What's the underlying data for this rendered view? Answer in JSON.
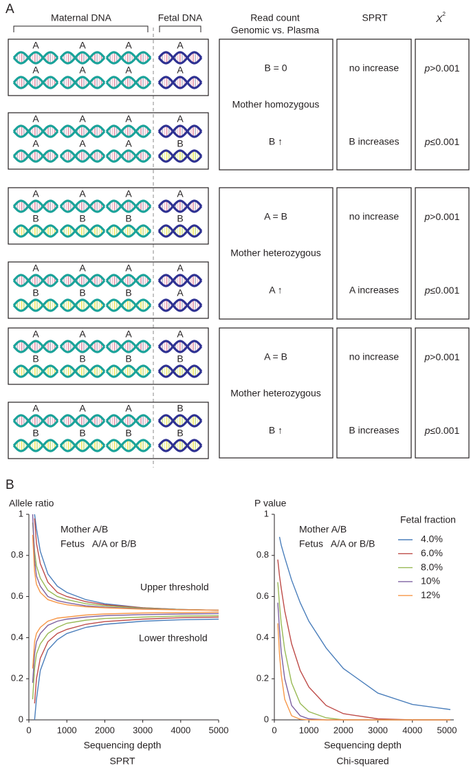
{
  "panel_a": {
    "label": "A",
    "headers": {
      "maternal": "Maternal DNA",
      "fetal": "Fetal DNA",
      "read_count": [
        "Read count",
        "Genomic vs. Plasma"
      ],
      "sprt": "SPRT",
      "chi": {
        "symbol": "X",
        "sup": "2"
      }
    },
    "boxes": [
      {
        "maternal": [
          "A",
          "A"
        ],
        "fetal": [
          "A",
          "A"
        ]
      },
      {
        "maternal": [
          "A",
          "A"
        ],
        "fetal": [
          "A",
          "B"
        ]
      },
      {
        "maternal": [
          "A",
          "B"
        ],
        "fetal": [
          "A",
          "B"
        ]
      },
      {
        "maternal": [
          "A",
          "B"
        ],
        "fetal": [
          "A",
          "A"
        ]
      },
      {
        "maternal": [
          "A",
          "B"
        ],
        "fetal": [
          "A",
          "B"
        ]
      },
      {
        "maternal": [
          "A",
          "B"
        ],
        "fetal": [
          "B",
          "B"
        ]
      }
    ],
    "groups": [
      {
        "read_count": [
          "B = 0",
          "Mother homozygous",
          "B ↑"
        ],
        "sprt": [
          "no increase",
          "B increases"
        ],
        "chi": [
          {
            "italic": "p",
            "text": ">0.001"
          },
          {
            "italic": "p",
            "text": "≤0.001"
          }
        ]
      },
      {
        "read_count": [
          "A = B",
          "Mother heterozygous",
          "A ↑"
        ],
        "sprt": [
          "no increase",
          "A increases"
        ],
        "chi": [
          {
            "italic": "p",
            "text": ">0.001"
          },
          {
            "italic": "p",
            "text": "≤0.001"
          }
        ]
      },
      {
        "read_count": [
          "A = B",
          "Mother heterozygous",
          "B ↑"
        ],
        "sprt": [
          "no increase",
          "B increases"
        ],
        "chi": [
          {
            "italic": "p",
            "text": ">0.001"
          },
          {
            "italic": "p",
            "text": "≤0.001"
          }
        ]
      }
    ]
  },
  "panel_b_label": "B",
  "chart_data": [
    {
      "type": "line",
      "y_label": "Allele ratio",
      "x_label": "Sequencing depth",
      "caption": "SPRT",
      "annotations": [
        "Mother A/B",
        "Fetus   A/A or B/B",
        "Upper threshold",
        "Lower threshold"
      ],
      "x": [
        100,
        150,
        200,
        300,
        500,
        750,
        1000,
        1500,
        2000,
        3000,
        4000,
        5000
      ],
      "series": [
        {
          "color": "#4a7ebb",
          "values": [
            null,
            1.0,
            0.93,
            0.82,
            0.71,
            0.65,
            0.62,
            0.585,
            0.565,
            0.545,
            0.537,
            0.533
          ]
        },
        {
          "color": "#4a7ebb",
          "values": [
            null,
            0.0,
            0.1,
            0.24,
            0.34,
            0.39,
            0.42,
            0.45,
            0.465,
            0.48,
            0.487,
            0.49
          ]
        },
        {
          "color": "#be4b48",
          "values": [
            null,
            0.98,
            0.86,
            0.76,
            0.67,
            0.62,
            0.6,
            0.575,
            0.56,
            0.545,
            0.537,
            0.533
          ]
        },
        {
          "color": "#be4b48",
          "values": [
            null,
            0.08,
            0.2,
            0.3,
            0.38,
            0.42,
            0.44,
            0.465,
            0.478,
            0.49,
            0.497,
            0.5
          ]
        },
        {
          "color": "#98b954",
          "values": [
            0.96,
            0.82,
            0.75,
            0.69,
            0.63,
            0.6,
            0.585,
            0.565,
            0.555,
            0.543,
            0.537,
            0.533
          ]
        },
        {
          "color": "#98b954",
          "values": [
            0.1,
            0.25,
            0.32,
            0.37,
            0.42,
            0.45,
            0.47,
            0.485,
            0.493,
            0.5,
            0.505,
            0.507
          ]
        },
        {
          "color": "#7d60a0",
          "values": [
            1.0,
            0.78,
            0.7,
            0.65,
            0.6,
            0.58,
            0.57,
            0.555,
            0.548,
            0.54,
            0.536,
            0.533
          ]
        },
        {
          "color": "#7d60a0",
          "values": [
            0.18,
            0.32,
            0.38,
            0.42,
            0.46,
            0.48,
            0.49,
            0.5,
            0.507,
            0.512,
            0.515,
            0.517
          ]
        },
        {
          "color": "#f79646",
          "values": [
            0.9,
            0.72,
            0.66,
            0.62,
            0.585,
            0.57,
            0.56,
            0.55,
            0.545,
            0.538,
            0.535,
            0.533
          ]
        },
        {
          "color": "#f79646",
          "values": [
            0.25,
            0.38,
            0.42,
            0.45,
            0.48,
            0.495,
            0.5,
            0.51,
            0.515,
            0.52,
            0.522,
            0.524
          ]
        }
      ],
      "xlim": [
        0,
        5000
      ],
      "ylim": [
        0,
        1
      ],
      "xticks": [
        0,
        1000,
        2000,
        3000,
        4000,
        5000
      ],
      "yticks": [
        0,
        0.2,
        0.4,
        0.6,
        0.8,
        1
      ]
    },
    {
      "type": "line",
      "y_label": "P value",
      "x_label": "Sequencing depth",
      "caption": "Chi-squared",
      "annotations": [
        "Mother A/B",
        "Fetus   A/A or B/B"
      ],
      "legend_title": "Fetal fraction",
      "legend": "upper-right",
      "x": [
        100,
        150,
        200,
        300,
        500,
        750,
        1000,
        1500,
        2000,
        3000,
        4000,
        5100
      ],
      "series": [
        {
          "name": "4.0%",
          "color": "#4a7ebb",
          "values": [
            null,
            0.89,
            0.85,
            0.79,
            0.68,
            0.57,
            0.48,
            0.35,
            0.25,
            0.13,
            0.075,
            0.05
          ]
        },
        {
          "name": "6.0%",
          "color": "#be4b48",
          "values": [
            0.78,
            0.7,
            0.64,
            0.53,
            0.37,
            0.24,
            0.16,
            0.07,
            0.03,
            0.005,
            0,
            0
          ]
        },
        {
          "name": "8.0%",
          "color": "#98b954",
          "values": [
            0.67,
            0.56,
            0.47,
            0.34,
            0.18,
            0.08,
            0.04,
            0.01,
            0,
            0,
            0,
            0
          ]
        },
        {
          "name": "10%",
          "color": "#7d60a0",
          "values": [
            0.57,
            0.44,
            0.33,
            0.2,
            0.07,
            0.02,
            0.005,
            0,
            0,
            0,
            0,
            0
          ]
        },
        {
          "name": "12%",
          "color": "#f79646",
          "values": [
            0.47,
            0.32,
            0.22,
            0.1,
            0.02,
            0.003,
            0,
            0,
            0,
            0,
            0,
            0
          ]
        }
      ],
      "xlim": [
        0,
        5200
      ],
      "ylim": [
        0,
        1
      ],
      "xticks": [
        0,
        1000,
        2000,
        3000,
        4000,
        5000
      ],
      "yticks": [
        0,
        0.2,
        0.4,
        0.6,
        0.8,
        1
      ]
    }
  ]
}
